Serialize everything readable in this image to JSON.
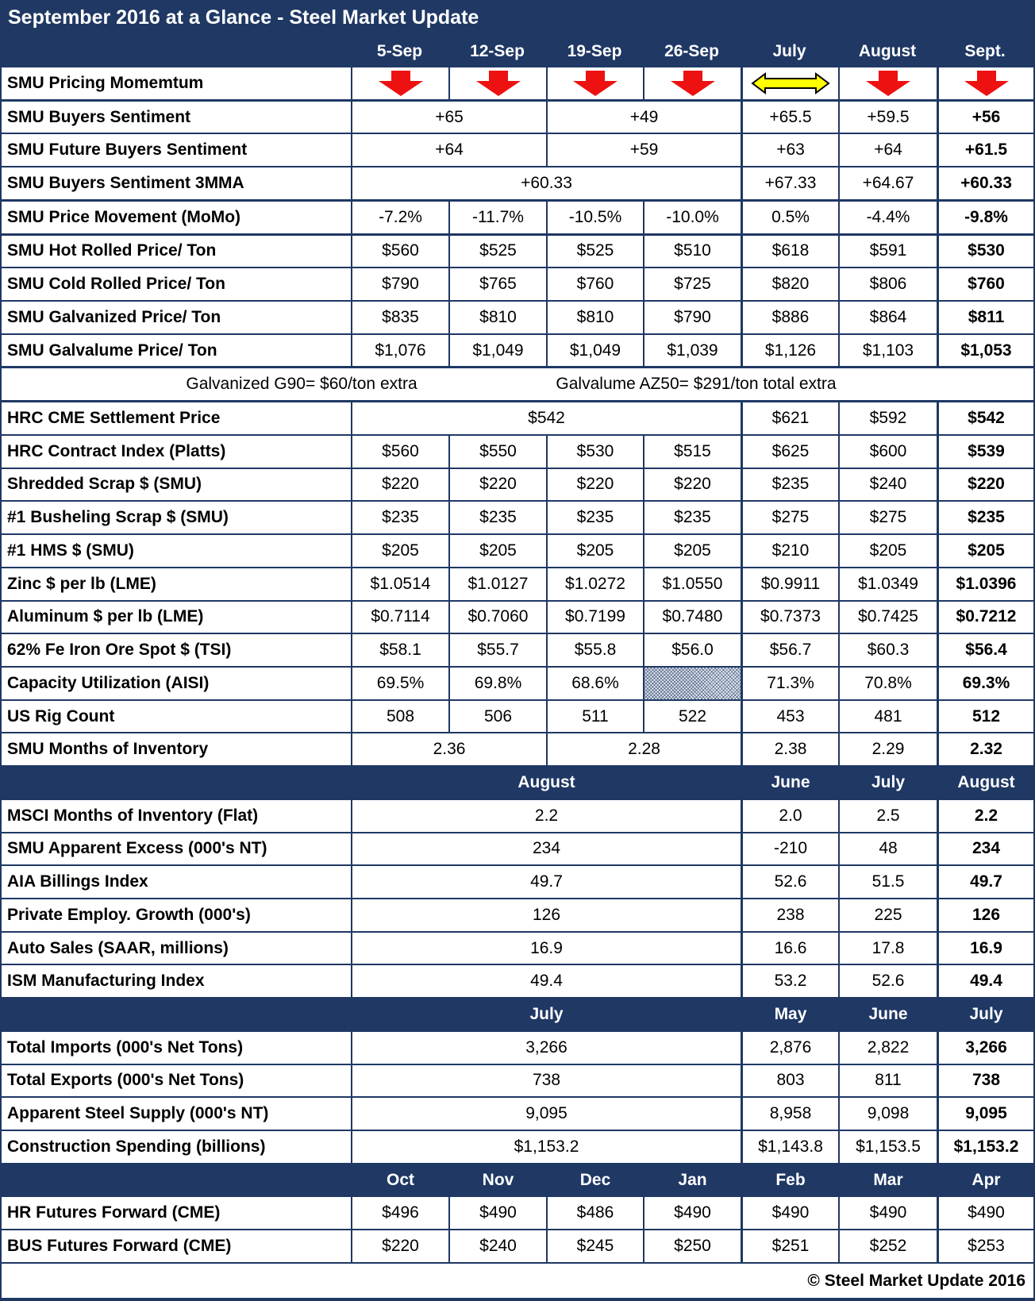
{
  "title": "September 2016 at a Glance - Steel Market Update",
  "columns": [
    "5-Sep",
    "12-Sep",
    "19-Sep",
    "26-Sep",
    "July",
    "August",
    "Sept."
  ],
  "colors": {
    "navy_header": "#1F3864",
    "border_navy": "#1F3864",
    "arrow_down_red": "#EE1111",
    "arrow_sideways_yellow": "#FFFF00",
    "text": "#000000",
    "header_text": "#FFFFFF"
  },
  "icons": {
    "down": "momentum-down-arrow-icon",
    "side": "momentum-sideways-arrow-icon"
  },
  "rows": [
    {
      "kind": "icons",
      "label": "SMU Pricing Momemtum",
      "cells": [
        {
          "icon": "down"
        },
        {
          "icon": "down"
        },
        {
          "icon": "down"
        },
        {
          "icon": "down"
        },
        {
          "icon": "side"
        },
        {
          "icon": "down"
        },
        {
          "icon": "down"
        }
      ]
    },
    {
      "kind": "data",
      "top": "thick",
      "label": "SMU Buyers Sentiment",
      "cells": [
        {
          "t": "+65",
          "span": 2
        },
        {
          "t": "+49",
          "span": 2
        },
        {
          "t": "+65.5"
        },
        {
          "t": "+59.5"
        },
        {
          "t": "+56",
          "b": 1
        }
      ]
    },
    {
      "kind": "data",
      "label": "SMU Future Buyers Sentiment",
      "cells": [
        {
          "t": "+64",
          "span": 2
        },
        {
          "t": "+59",
          "span": 2
        },
        {
          "t": "+63"
        },
        {
          "t": "+64"
        },
        {
          "t": "+61.5",
          "b": 1
        }
      ]
    },
    {
      "kind": "data",
      "label": "SMU Buyers Sentiment 3MMA",
      "cells": [
        {
          "t": "+60.33",
          "span": 4
        },
        {
          "t": "+67.33"
        },
        {
          "t": "+64.67"
        },
        {
          "t": "+60.33",
          "b": 1
        }
      ]
    },
    {
      "kind": "data",
      "top": "thick",
      "label": "SMU Price Movement (MoMo)",
      "cells": [
        {
          "t": "-7.2%"
        },
        {
          "t": "-11.7%"
        },
        {
          "t": "-10.5%"
        },
        {
          "t": "-10.0%"
        },
        {
          "t": "0.5%"
        },
        {
          "t": "-4.4%"
        },
        {
          "t": "-9.8%",
          "b": 1
        }
      ]
    },
    {
      "kind": "data",
      "top": "thick",
      "label": "SMU Hot Rolled Price/ Ton",
      "cells": [
        {
          "t": "$560"
        },
        {
          "t": "$525"
        },
        {
          "t": "$525"
        },
        {
          "t": "$510"
        },
        {
          "t": "$618"
        },
        {
          "t": "$591"
        },
        {
          "t": "$530",
          "b": 1
        }
      ]
    },
    {
      "kind": "data",
      "label": "SMU Cold Rolled Price/ Ton",
      "cells": [
        {
          "t": "$790"
        },
        {
          "t": "$765"
        },
        {
          "t": "$760"
        },
        {
          "t": "$725"
        },
        {
          "t": "$820"
        },
        {
          "t": "$806"
        },
        {
          "t": "$760",
          "b": 1
        }
      ]
    },
    {
      "kind": "data",
      "label": "SMU Galvanized Price/ Ton",
      "cells": [
        {
          "t": "$835"
        },
        {
          "t": "$810"
        },
        {
          "t": "$810"
        },
        {
          "t": "$790"
        },
        {
          "t": "$886"
        },
        {
          "t": "$864"
        },
        {
          "t": "$811",
          "b": 1
        }
      ]
    },
    {
      "kind": "data",
      "label": "SMU Galvalume Price/ Ton",
      "cells": [
        {
          "t": "$1,076"
        },
        {
          "t": "$1,049"
        },
        {
          "t": "$1,049"
        },
        {
          "t": "$1,039"
        },
        {
          "t": "$1,126"
        },
        {
          "t": "$1,103"
        },
        {
          "t": "$1,053",
          "b": 1
        }
      ]
    },
    {
      "kind": "note",
      "top": "thick",
      "left": "Galvanized G90= $60/ton extra",
      "right": "Galvalume AZ50= $291/ton total extra"
    },
    {
      "kind": "data",
      "top": "thick",
      "label": "HRC CME Settlement Price",
      "cells": [
        {
          "t": "$542",
          "span": 4
        },
        {
          "t": "$621"
        },
        {
          "t": "$592"
        },
        {
          "t": "$542",
          "b": 1
        }
      ]
    },
    {
      "kind": "data",
      "label": "HRC Contract Index (Platts)",
      "cells": [
        {
          "t": "$560"
        },
        {
          "t": "$550"
        },
        {
          "t": "$530"
        },
        {
          "t": "$515"
        },
        {
          "t": "$625"
        },
        {
          "t": "$600"
        },
        {
          "t": "$539",
          "b": 1
        }
      ]
    },
    {
      "kind": "data",
      "label": "Shredded Scrap $ (SMU)",
      "cells": [
        {
          "t": "$220"
        },
        {
          "t": "$220"
        },
        {
          "t": "$220"
        },
        {
          "t": "$220"
        },
        {
          "t": "$235"
        },
        {
          "t": "$240"
        },
        {
          "t": "$220",
          "b": 1
        }
      ]
    },
    {
      "kind": "data",
      "label": "#1 Busheling Scrap $ (SMU)",
      "cells": [
        {
          "t": "$235"
        },
        {
          "t": "$235"
        },
        {
          "t": "$235"
        },
        {
          "t": "$235"
        },
        {
          "t": "$275"
        },
        {
          "t": "$275"
        },
        {
          "t": "$235",
          "b": 1
        }
      ]
    },
    {
      "kind": "data",
      "label": "#1 HMS $ (SMU)",
      "cells": [
        {
          "t": "$205"
        },
        {
          "t": "$205"
        },
        {
          "t": "$205"
        },
        {
          "t": "$205"
        },
        {
          "t": "$210"
        },
        {
          "t": "$205"
        },
        {
          "t": "$205",
          "b": 1
        }
      ]
    },
    {
      "kind": "data",
      "label": "Zinc $ per lb (LME)",
      "cells": [
        {
          "t": "$1.0514"
        },
        {
          "t": "$1.0127"
        },
        {
          "t": "$1.0272"
        },
        {
          "t": "$1.0550"
        },
        {
          "t": "$0.9911"
        },
        {
          "t": "$1.0349"
        },
        {
          "t": "$1.0396",
          "b": 1
        }
      ]
    },
    {
      "kind": "data",
      "label": "Aluminum $ per lb (LME)",
      "cells": [
        {
          "t": "$0.7114"
        },
        {
          "t": "$0.7060"
        },
        {
          "t": "$0.7199"
        },
        {
          "t": "$0.7480"
        },
        {
          "t": "$0.7373"
        },
        {
          "t": "$0.7425"
        },
        {
          "t": "$0.7212",
          "b": 1
        }
      ]
    },
    {
      "kind": "data",
      "label": "62% Fe Iron Ore Spot $ (TSI)",
      "cells": [
        {
          "t": "$58.1"
        },
        {
          "t": "$55.7"
        },
        {
          "t": "$55.8"
        },
        {
          "t": "$56.0"
        },
        {
          "t": "$56.7"
        },
        {
          "t": "$60.3"
        },
        {
          "t": "$56.4",
          "b": 1
        }
      ]
    },
    {
      "kind": "data",
      "label": "Capacity Utilization (AISI)",
      "cells": [
        {
          "t": "69.5%"
        },
        {
          "t": "69.8%"
        },
        {
          "t": "68.6%"
        },
        {
          "pattern": 1
        },
        {
          "t": "71.3%"
        },
        {
          "t": "70.8%"
        },
        {
          "t": "69.3%",
          "b": 1
        }
      ]
    },
    {
      "kind": "data",
      "label": "US Rig Count",
      "cells": [
        {
          "t": "508"
        },
        {
          "t": "506"
        },
        {
          "t": "511"
        },
        {
          "t": "522"
        },
        {
          "t": "453"
        },
        {
          "t": "481"
        },
        {
          "t": "512",
          "b": 1
        }
      ]
    },
    {
      "kind": "data",
      "label": "SMU Months of Inventory",
      "cells": [
        {
          "t": "2.36",
          "span": 2
        },
        {
          "t": "2.28",
          "span": 2
        },
        {
          "t": "2.38"
        },
        {
          "t": "2.29"
        },
        {
          "t": "2.32",
          "b": 1
        }
      ]
    },
    {
      "kind": "section",
      "label": "",
      "cells": [
        {
          "t": "August",
          "span": 4
        },
        {
          "t": "June"
        },
        {
          "t": "July"
        },
        {
          "t": "August"
        }
      ]
    },
    {
      "kind": "data",
      "label": "MSCI Months of Inventory (Flat)",
      "cells": [
        {
          "t": "2.2",
          "span": 4
        },
        {
          "t": "2.0"
        },
        {
          "t": "2.5"
        },
        {
          "t": "2.2",
          "b": 1
        }
      ]
    },
    {
      "kind": "data",
      "label": "SMU Apparent Excess (000's NT)",
      "cells": [
        {
          "t": "234",
          "span": 4
        },
        {
          "t": "-210"
        },
        {
          "t": "48"
        },
        {
          "t": "234",
          "b": 1
        }
      ]
    },
    {
      "kind": "data",
      "label": "AIA Billings Index",
      "cells": [
        {
          "t": "49.7",
          "span": 4
        },
        {
          "t": "52.6"
        },
        {
          "t": "51.5"
        },
        {
          "t": "49.7",
          "b": 1
        }
      ]
    },
    {
      "kind": "data",
      "label": "Private Employ. Growth (000's)",
      "cells": [
        {
          "t": "126",
          "span": 4
        },
        {
          "t": "238"
        },
        {
          "t": "225"
        },
        {
          "t": "126",
          "b": 1
        }
      ]
    },
    {
      "kind": "data",
      "label": "Auto Sales (SAAR, millions)",
      "cells": [
        {
          "t": "16.9",
          "span": 4
        },
        {
          "t": "16.6"
        },
        {
          "t": "17.8"
        },
        {
          "t": "16.9",
          "b": 1
        }
      ]
    },
    {
      "kind": "data",
      "label": "ISM Manufacturing Index",
      "cells": [
        {
          "t": "49.4",
          "span": 4
        },
        {
          "t": "53.2"
        },
        {
          "t": "52.6"
        },
        {
          "t": "49.4",
          "b": 1
        }
      ]
    },
    {
      "kind": "section",
      "label": "",
      "cells": [
        {
          "t": "July",
          "span": 4
        },
        {
          "t": "May"
        },
        {
          "t": "June"
        },
        {
          "t": "July"
        }
      ]
    },
    {
      "kind": "data",
      "label": "Total Imports (000's Net Tons)",
      "cells": [
        {
          "t": "3,266",
          "span": 4
        },
        {
          "t": "2,876"
        },
        {
          "t": "2,822"
        },
        {
          "t": "3,266",
          "b": 1
        }
      ]
    },
    {
      "kind": "data",
      "label": "Total Exports (000's Net Tons)",
      "cells": [
        {
          "t": "738",
          "span": 4
        },
        {
          "t": "803"
        },
        {
          "t": "811"
        },
        {
          "t": "738",
          "b": 1
        }
      ]
    },
    {
      "kind": "data",
      "label": "Apparent Steel Supply (000's NT)",
      "cells": [
        {
          "t": "9,095",
          "span": 4
        },
        {
          "t": "8,958"
        },
        {
          "t": "9,098"
        },
        {
          "t": "9,095",
          "b": 1
        }
      ]
    },
    {
      "kind": "data",
      "label": "Construction Spending (billions)",
      "cells": [
        {
          "t": "$1,153.2",
          "span": 4
        },
        {
          "t": "$1,143.8"
        },
        {
          "t": "$1,153.5"
        },
        {
          "t": "$1,153.2",
          "b": 1
        }
      ]
    },
    {
      "kind": "section",
      "label": "",
      "cells": [
        {
          "t": "Oct"
        },
        {
          "t": "Nov"
        },
        {
          "t": "Dec"
        },
        {
          "t": "Jan"
        },
        {
          "t": "Feb"
        },
        {
          "t": "Mar"
        },
        {
          "t": "Apr"
        }
      ]
    },
    {
      "kind": "data",
      "label": "HR Futures Forward (CME)",
      "cells": [
        {
          "t": "$496"
        },
        {
          "t": "$490"
        },
        {
          "t": "$486"
        },
        {
          "t": "$490"
        },
        {
          "t": "$490"
        },
        {
          "t": "$490"
        },
        {
          "t": "$490"
        }
      ]
    },
    {
      "kind": "data",
      "label": "BUS Futures Forward (CME)",
      "cells": [
        {
          "t": "$220"
        },
        {
          "t": "$240"
        },
        {
          "t": "$245"
        },
        {
          "t": "$250"
        },
        {
          "t": "$251"
        },
        {
          "t": "$252"
        },
        {
          "t": "$253"
        }
      ]
    }
  ],
  "footer": {
    "copyright": "© Steel Market Update 2016"
  }
}
